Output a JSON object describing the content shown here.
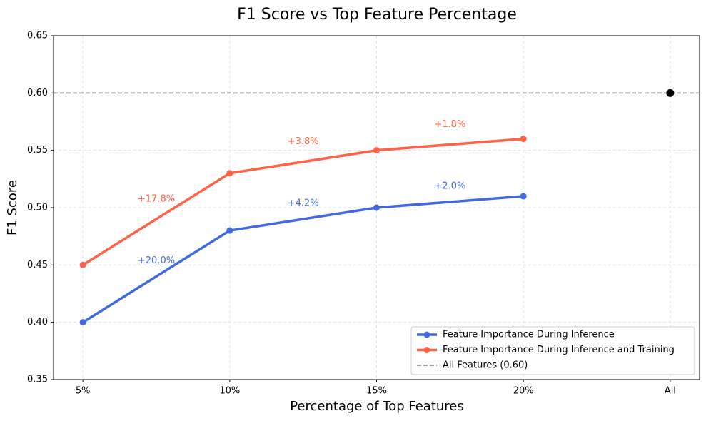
{
  "chart_data": {
    "type": "line",
    "title": "F1 Score vs Top Feature Percentage",
    "x_label": "Percentage of Top Features",
    "y_label": "F1 Score",
    "categories": [
      "5%",
      "10%",
      "15%",
      "20%",
      "All"
    ],
    "series": [
      {
        "name": "Feature Importance During Inference",
        "color": "#4169e1",
        "values": [
          0.4,
          0.48,
          0.5,
          0.51,
          null
        ]
      },
      {
        "name": "Feature Importance During Inference and Training",
        "color": "#ff6347",
        "values": [
          0.45,
          0.53,
          0.55,
          0.56,
          null
        ]
      }
    ],
    "reference": {
      "name": "All Features (0.60)",
      "value": 0.6,
      "color": "#808080",
      "point_color": "#000000"
    },
    "annotations": [
      {
        "series": 0,
        "segment": 0,
        "text": "+20.0%"
      },
      {
        "series": 0,
        "segment": 1,
        "text": "+4.2%"
      },
      {
        "series": 0,
        "segment": 2,
        "text": "+2.0%"
      },
      {
        "series": 1,
        "segment": 0,
        "text": "+17.8%"
      },
      {
        "series": 1,
        "segment": 1,
        "text": "+3.8%"
      },
      {
        "series": 1,
        "segment": 2,
        "text": "+1.8%"
      }
    ],
    "ylim": [
      0.35,
      0.65
    ],
    "yticks": [
      0.35,
      {
        "value": 0.4,
        "label": "0.40"
      },
      0.45,
      {
        "value": 0.5,
        "label": "0.50"
      },
      0.55,
      {
        "value": 0.6,
        "label": "0.60"
      },
      0.65
    ],
    "grid": true,
    "legend": "lower right"
  }
}
